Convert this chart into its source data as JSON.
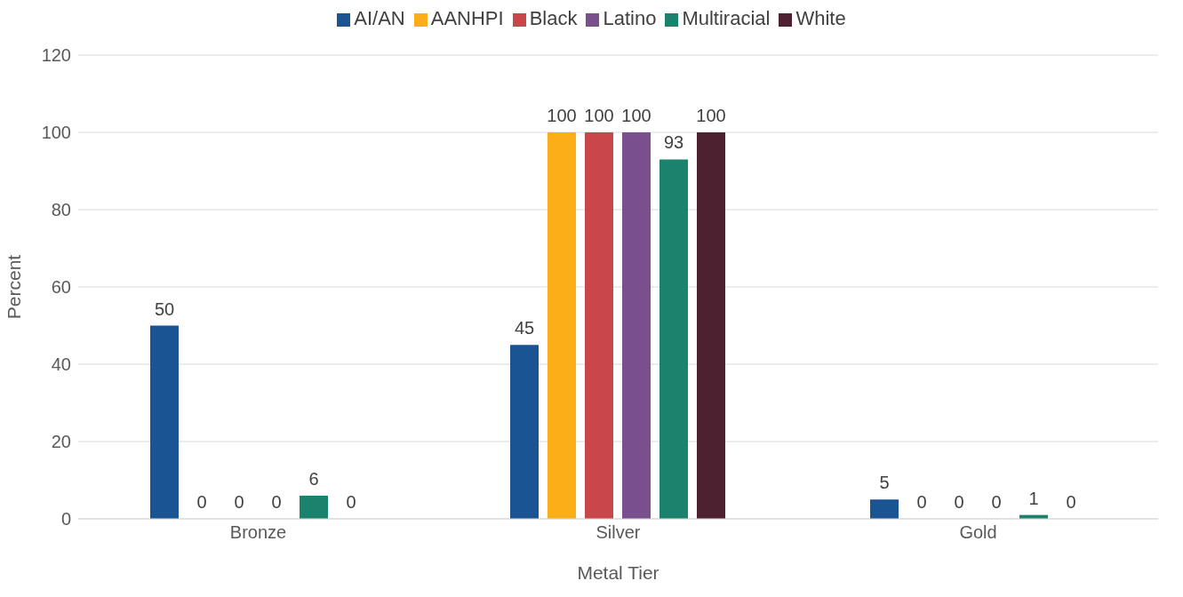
{
  "chart_data": {
    "type": "bar",
    "xlabel": "Metal Tier",
    "ylabel": "Percent",
    "categories": [
      "Bronze",
      "Silver",
      "Gold"
    ],
    "series": [
      {
        "name": "AI/AN",
        "color": "#1a5493",
        "values": [
          50,
          45,
          5
        ]
      },
      {
        "name": "AANHPI",
        "color": "#fbae17",
        "values": [
          0,
          100,
          0
        ]
      },
      {
        "name": "Black",
        "color": "#c9474a",
        "values": [
          0,
          100,
          0
        ]
      },
      {
        "name": "Latino",
        "color": "#794f8e",
        "values": [
          0,
          100,
          0
        ]
      },
      {
        "name": "Multiracial",
        "color": "#1b836d",
        "values": [
          6,
          93,
          1
        ]
      },
      {
        "name": "White",
        "color": "#4e2130",
        "values": [
          0,
          100,
          0
        ]
      }
    ],
    "ylim": [
      0,
      120
    ],
    "yticks": [
      0,
      20,
      40,
      60,
      80,
      100,
      120
    ],
    "grid": "y",
    "legend": "top",
    "data_labels": true
  }
}
